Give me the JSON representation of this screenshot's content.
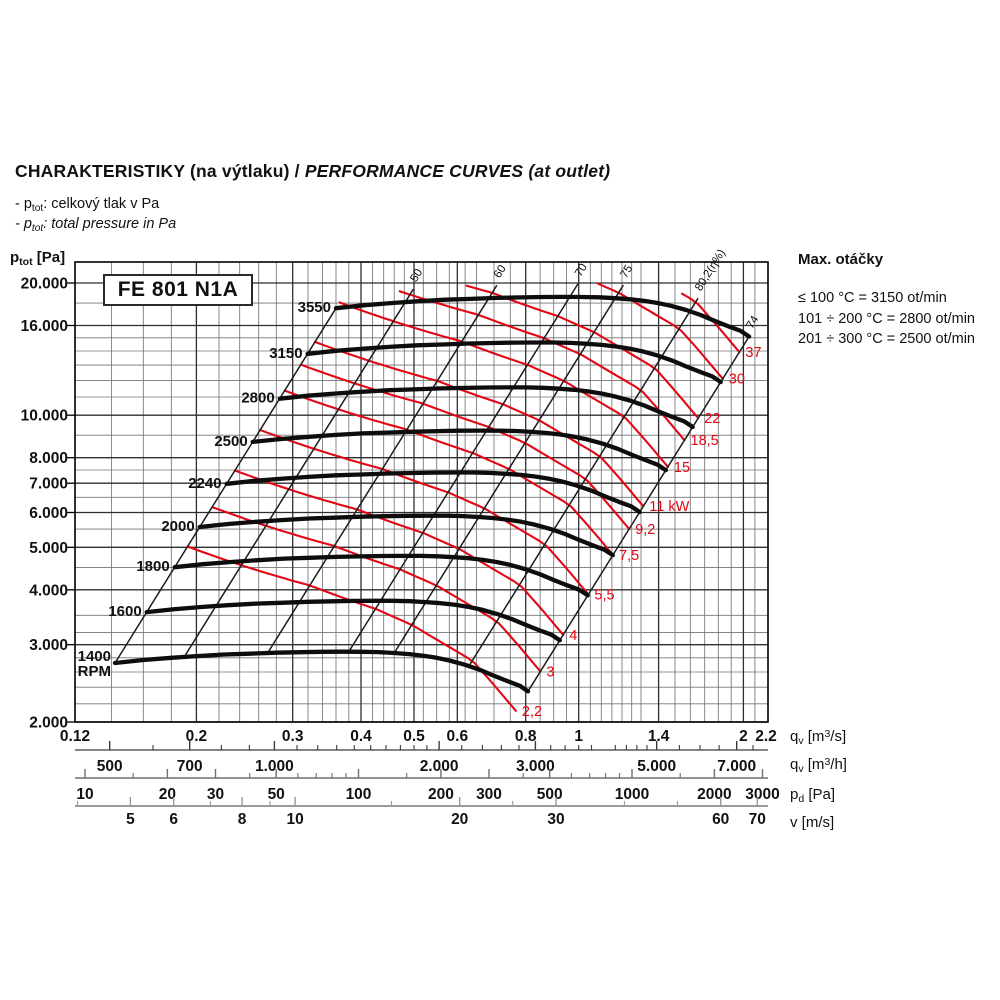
{
  "window": {
    "background": "#ffffff"
  },
  "header": {
    "title_primary": "CHARAKTERISTIKY (na výtlaku)",
    "title_separator": " / ",
    "title_secondary": "PERFORMANCE CURVES (at outlet)",
    "notes": [
      {
        "prefix": "- p",
        "sub": "tot",
        "text": ": celkový tlak v Pa"
      },
      {
        "prefix": "- p",
        "sub": "tot",
        "text": ": total pressure in Pa"
      }
    ]
  },
  "model_box": {
    "label": "FE 801 N1A"
  },
  "max_speed_panel": {
    "title": "Max. otáčky",
    "lines": [
      "≤ 100 °C = 3150 ot/min",
      "101 ÷ 200 °C = 2800 ot/min",
      "201 ÷ 300 °C = 2500 ot/min"
    ]
  },
  "y_axis_label": {
    "main": "p",
    "sub": "tot",
    "rest": " [Pa]"
  },
  "axis_unit_labels": {
    "flow_s": {
      "main": "q",
      "sub": "v",
      "bracket_pre": " [m",
      "sup": "3",
      "bracket_post": "/s]"
    },
    "flow_h": {
      "main": "q",
      "sub": "v",
      "bracket_pre": " [m",
      "sup": "3",
      "bracket_post": "/h]"
    },
    "dyn_pressure": {
      "main": "p",
      "sub": "d",
      "bracket_pre": " [Pa]",
      "sup": "",
      "bracket_post": ""
    },
    "velocity": {
      "main": "v",
      "sub": "",
      "bracket_pre": " [m/s]",
      "sup": "",
      "bracket_post": ""
    }
  },
  "chart_data": {
    "type": "line",
    "model": "FE 801 N1A",
    "x_axis": {
      "label": "qv [m3/s]",
      "scale": "log",
      "range": [
        0.12,
        2.2
      ],
      "ticks": [
        {
          "v": 0.12,
          "t": "0.12"
        },
        {
          "v": 0.2,
          "t": "0.2"
        },
        {
          "v": 0.3,
          "t": "0.3"
        },
        {
          "v": 0.4,
          "t": "0.4"
        },
        {
          "v": 0.5,
          "t": "0.5"
        },
        {
          "v": 0.6,
          "t": "0.6"
        },
        {
          "v": 0.8,
          "t": "0.8"
        },
        {
          "v": 1,
          "t": "1"
        },
        {
          "v": 1.4,
          "t": "1.4"
        },
        {
          "v": 2,
          "t": "2"
        },
        {
          "v": 2.2,
          "t": "2.2"
        }
      ],
      "grid_major": [
        0.2,
        0.3,
        0.4,
        0.5,
        0.6,
        0.8,
        1,
        1.4,
        2
      ],
      "grid_minor": [
        0.14,
        0.16,
        0.18,
        0.22,
        0.24,
        0.26,
        0.28,
        0.32,
        0.34,
        0.36,
        0.38,
        0.42,
        0.44,
        0.46,
        0.48,
        0.52,
        0.55,
        0.58,
        0.62,
        0.65,
        0.7,
        0.75,
        0.85,
        0.9,
        0.95,
        1.05,
        1.1,
        1.15,
        1.2,
        1.25,
        1.3,
        1.5,
        1.6,
        1.7,
        1.8,
        1.9,
        2.1
      ]
    },
    "y_axis": {
      "label": "ptot [Pa]",
      "scale": "log",
      "range": [
        2000,
        22340
      ],
      "ticks": [
        {
          "v": 20000,
          "t": "20.000"
        },
        {
          "v": 16000,
          "t": "16.000"
        },
        {
          "v": 10000,
          "t": "10.000"
        },
        {
          "v": 8000,
          "t": "8.000"
        },
        {
          "v": 7000,
          "t": "7.000"
        },
        {
          "v": 6000,
          "t": "6.000"
        },
        {
          "v": 5000,
          "t": "5.000"
        },
        {
          "v": 4000,
          "t": "4.000"
        },
        {
          "v": 3000,
          "t": "3.000"
        },
        {
          "v": 2000,
          "t": "2.000"
        }
      ],
      "grid_major": [
        2000,
        3000,
        4000,
        5000,
        6000,
        7000,
        8000,
        10000,
        16000,
        20000
      ],
      "grid_minor": [
        2200,
        2400,
        2600,
        2800,
        3200,
        3500,
        4500,
        5500,
        6500,
        7500,
        9000,
        11000,
        12000,
        13000,
        14000,
        15000,
        18000
      ]
    },
    "flow_axis_m3h": {
      "label": "qv [m3/h]",
      "ticks": [
        {
          "v": 500,
          "t": "500"
        },
        {
          "v": 700,
          "t": "700"
        },
        {
          "v": 1000,
          "t": "1.000"
        },
        {
          "v": 2000,
          "t": "2.000"
        },
        {
          "v": 3000,
          "t": "3.000"
        },
        {
          "v": 5000,
          "t": "5.000"
        },
        {
          "v": 7000,
          "t": "7.000"
        }
      ],
      "minor_ticks": [
        600,
        800,
        900,
        1100,
        1200,
        1300,
        1400,
        1500,
        1600,
        1700,
        1800,
        1900,
        2200,
        2400,
        2600,
        2800,
        3200,
        3400,
        3600,
        3800,
        4200,
        4400,
        4600,
        4800,
        5500,
        6000,
        6500,
        7500
      ]
    },
    "dyn_pressure_axis": {
      "label": "pd [Pa]",
      "ticks": [
        {
          "v": 10,
          "t": "10"
        },
        {
          "v": 20,
          "t": "20"
        },
        {
          "v": 30,
          "t": "30"
        },
        {
          "v": 50,
          "t": "50"
        },
        {
          "v": 100,
          "t": "100"
        },
        {
          "v": 200,
          "t": "200"
        },
        {
          "v": 300,
          "t": "300"
        },
        {
          "v": 500,
          "t": "500"
        },
        {
          "v": 1000,
          "t": "1000"
        },
        {
          "v": 2000,
          "t": "2000"
        },
        {
          "v": 3000,
          "t": "3000"
        }
      ],
      "minor_ticks": [
        15,
        40,
        60,
        70,
        80,
        90,
        150,
        400,
        600,
        700,
        800,
        900,
        1500
      ]
    },
    "velocity_axis": {
      "label": "v [m/s]",
      "ticks": [
        {
          "v": 5,
          "t": "5"
        },
        {
          "v": 6,
          "t": "6"
        },
        {
          "v": 8,
          "t": "8"
        },
        {
          "v": 10,
          "t": "10"
        },
        {
          "v": 20,
          "t": "20"
        },
        {
          "v": 30,
          "t": "30"
        },
        {
          "v": 60,
          "t": "60"
        },
        {
          "v": 70,
          "t": "70"
        }
      ],
      "minor_ticks": [
        4,
        7,
        9,
        15,
        25,
        40,
        50
      ]
    },
    "rpm_curves": {
      "unit": "RPM",
      "base_speed": 1400,
      "speeds": [
        1400,
        1600,
        1800,
        2000,
        2240,
        2500,
        2800,
        3150,
        3550
      ],
      "base_curve_points": [
        [
          0.142,
          2725
        ],
        [
          0.16,
          2768
        ],
        [
          0.18,
          2800
        ],
        [
          0.2,
          2826
        ],
        [
          0.225,
          2850
        ],
        [
          0.25,
          2862
        ],
        [
          0.28,
          2876
        ],
        [
          0.31,
          2884
        ],
        [
          0.34,
          2890
        ],
        [
          0.37,
          2892
        ],
        [
          0.4,
          2891
        ],
        [
          0.43,
          2886
        ],
        [
          0.46,
          2872
        ],
        [
          0.49,
          2856
        ],
        [
          0.52,
          2832
        ],
        [
          0.55,
          2800
        ],
        [
          0.58,
          2762
        ],
        [
          0.62,
          2700
        ],
        [
          0.66,
          2628
        ],
        [
          0.7,
          2548
        ],
        [
          0.74,
          2480
        ],
        [
          0.78,
          2420
        ],
        [
          0.808,
          2350
        ]
      ]
    },
    "surge_line": {
      "q_base": 0.142,
      "s_top": 2.5357
    },
    "efficiency_lines": {
      "unit": "η%",
      "lines": [
        {
          "label": "50",
          "q_base": 0.19
        },
        {
          "label": "60",
          "q_base": 0.27
        },
        {
          "label": "70",
          "q_base": 0.38
        },
        {
          "label": "75",
          "q_base": 0.46
        },
        {
          "label": "80,2(η%)",
          "q_base": 0.63
        },
        {
          "label": "74",
          "q_base": 0.808
        }
      ]
    },
    "eta_model_anchors": [
      [
        0.142,
        0.44
      ],
      [
        0.19,
        0.5
      ],
      [
        0.27,
        0.6
      ],
      [
        0.38,
        0.7
      ],
      [
        0.46,
        0.75
      ],
      [
        0.63,
        0.802
      ],
      [
        0.808,
        0.74
      ]
    ],
    "power_curves": {
      "unit": "kW",
      "curves": [
        {
          "label": "2,2",
          "kw": 2.2
        },
        {
          "label": "3",
          "kw": 3
        },
        {
          "label": "4",
          "kw": 4
        },
        {
          "label": "5,5",
          "kw": 5.5
        },
        {
          "label": "7,5",
          "kw": 7.5
        },
        {
          "label": "9,2",
          "kw": 9.2
        },
        {
          "label": "11 kW",
          "kw": 11
        },
        {
          "label": "15",
          "kw": 15
        },
        {
          "label": "18,5",
          "kw": 18.5
        },
        {
          "label": "22",
          "kw": 22
        },
        {
          "label": "30",
          "kw": 30
        },
        {
          "label": "37",
          "kw": 37
        }
      ]
    },
    "colors": {
      "rpm_curve": "#0d0d0d",
      "power_curve": "#e30613",
      "efficiency_line": "#1c1c1c",
      "grid_major": "#2f2f2f",
      "grid_minor": "#757575",
      "frame": "#000000",
      "ruler_flow": "#3c3c3c",
      "ruler_pd": "#6f6f6f",
      "ruler_v": "#9a9a9a",
      "text": "#111111"
    }
  }
}
